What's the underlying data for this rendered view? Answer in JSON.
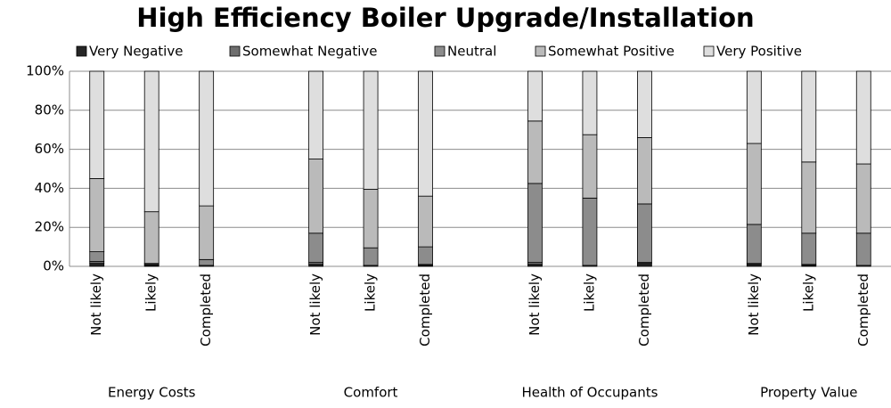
{
  "chart_data": {
    "type": "stacked_bar",
    "title": "High Efficiency Boiler Upgrade/Installation",
    "categories": [
      "Not likely",
      "Likely",
      "Completed",
      null,
      "Not likely",
      "Likely",
      "Completed",
      null,
      "Not likely",
      "Likely",
      "Completed",
      null,
      "Not likely",
      "Likely",
      "Completed"
    ],
    "group_labels": [
      "Energy Costs",
      "Comfort",
      "Health of Occupants",
      "Property Value"
    ],
    "series": [
      {
        "name": "Very Negative",
        "color": "#262626",
        "values": [
          1.5,
          0.5,
          0,
          null,
          1,
          0,
          0.5,
          null,
          1,
          0,
          1.5,
          null,
          1,
          0.5,
          0
        ]
      },
      {
        "name": "Somewhat Negative",
        "color": "#6e6e6e",
        "values": [
          1,
          0.5,
          0.5,
          null,
          1,
          0.5,
          0.5,
          null,
          1,
          0.5,
          0.5,
          null,
          0.5,
          0.5,
          0.5
        ]
      },
      {
        "name": "Neutral",
        "color": "#8c8c8c",
        "values": [
          5,
          0.5,
          3,
          null,
          15,
          9,
          9,
          null,
          40.5,
          34.5,
          30,
          null,
          20,
          16,
          16.5
        ]
      },
      {
        "name": "Somewhat Positive",
        "color": "#bababa",
        "values": [
          37.5,
          26.5,
          27.5,
          null,
          38,
          30,
          26,
          null,
          32,
          32.5,
          34,
          null,
          41.5,
          36.5,
          35.5
        ]
      },
      {
        "name": "Very Positive",
        "color": "#dedede",
        "values": [
          55,
          72,
          69,
          null,
          45,
          60.5,
          64,
          null,
          25.5,
          32.5,
          34,
          null,
          37,
          46.5,
          47.5
        ]
      }
    ],
    "ylim": [
      0,
      100
    ],
    "yticks": [
      {
        "value": 0,
        "label": "0%"
      },
      {
        "value": 20,
        "label": "20%"
      },
      {
        "value": 40,
        "label": "40%"
      },
      {
        "value": 60,
        "label": "60%"
      },
      {
        "value": 80,
        "label": "80%"
      },
      {
        "value": 100,
        "label": "100%"
      }
    ],
    "grid": true,
    "legend": "top"
  }
}
